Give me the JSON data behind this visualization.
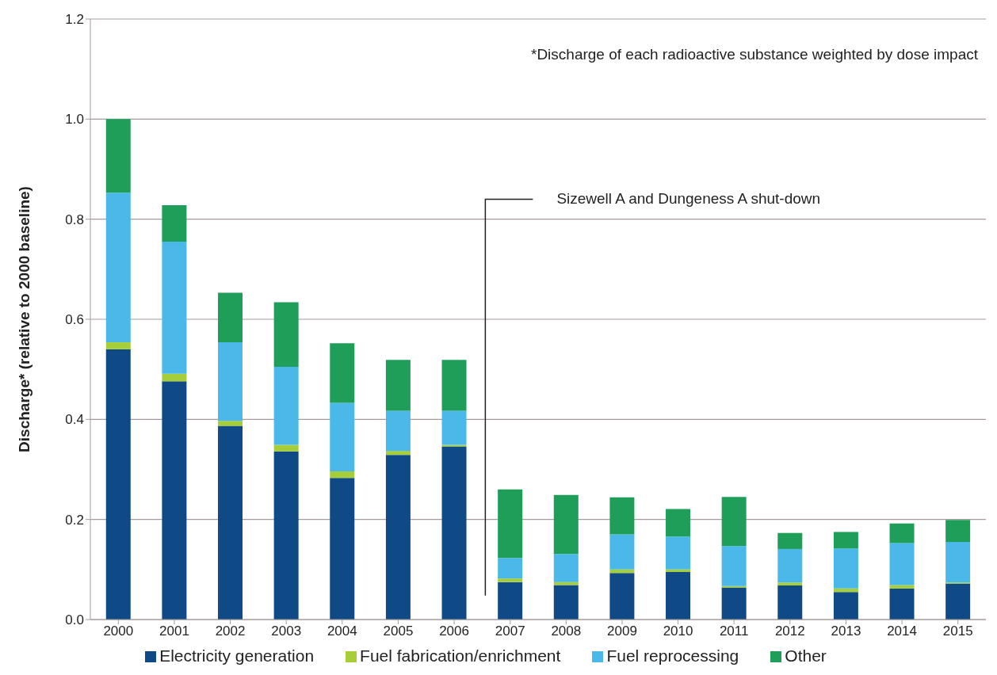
{
  "chart_data": {
    "type": "bar",
    "stacked": true,
    "ylabel": "Discharge* (relative to 2000 baseline)",
    "categories": [
      "2000",
      "2001",
      "2002",
      "2003",
      "2004",
      "2005",
      "2006",
      "2007",
      "2008",
      "2009",
      "2010",
      "2011",
      "2012",
      "2013",
      "2014",
      "2015"
    ],
    "series": [
      {
        "name": "Electricity generation",
        "color": "#0f4a86",
        "values": [
          0.54,
          0.476,
          0.387,
          0.336,
          0.283,
          0.329,
          0.346,
          0.075,
          0.069,
          0.093,
          0.095,
          0.064,
          0.068,
          0.055,
          0.062,
          0.072
        ]
      },
      {
        "name": "Fuel fabrication/enrichment",
        "color": "#a6ce39",
        "values": [
          0.014,
          0.015,
          0.01,
          0.013,
          0.013,
          0.008,
          0.003,
          0.007,
          0.006,
          0.007,
          0.005,
          0.003,
          0.006,
          0.007,
          0.007,
          0.002
        ]
      },
      {
        "name": "Fuel reprocessing",
        "color": "#4ab8e8",
        "values": [
          0.299,
          0.264,
          0.157,
          0.156,
          0.137,
          0.08,
          0.068,
          0.041,
          0.056,
          0.07,
          0.066,
          0.08,
          0.067,
          0.08,
          0.084,
          0.081
        ]
      },
      {
        "name": "Other",
        "color": "#1f9e5a",
        "values": [
          0.147,
          0.073,
          0.099,
          0.129,
          0.119,
          0.102,
          0.102,
          0.137,
          0.118,
          0.074,
          0.055,
          0.098,
          0.032,
          0.033,
          0.039,
          0.044
        ]
      }
    ],
    "ylim": [
      0,
      1.2
    ],
    "yticks": [
      {
        "value": 0,
        "label": "0.0"
      },
      {
        "value": 0.2,
        "label": "0.2"
      },
      {
        "value": 0.4,
        "label": "0.4"
      },
      {
        "value": 0.6,
        "label": "0.6"
      },
      {
        "value": 0.8,
        "label": "0.8"
      },
      {
        "value": 1,
        "label": "1.0"
      },
      {
        "value": 1.2,
        "label": "1.2"
      }
    ],
    "grid": "y",
    "legend": "bottom",
    "annotations": [
      "*Discharge of each radioactive substance weighted by dose impact"
    ],
    "ref_lines": [
      {
        "axis": "x",
        "value": "2007",
        "label": "Sizewell A and Dungeness A shut-down",
        "color": "#222222"
      }
    ]
  }
}
